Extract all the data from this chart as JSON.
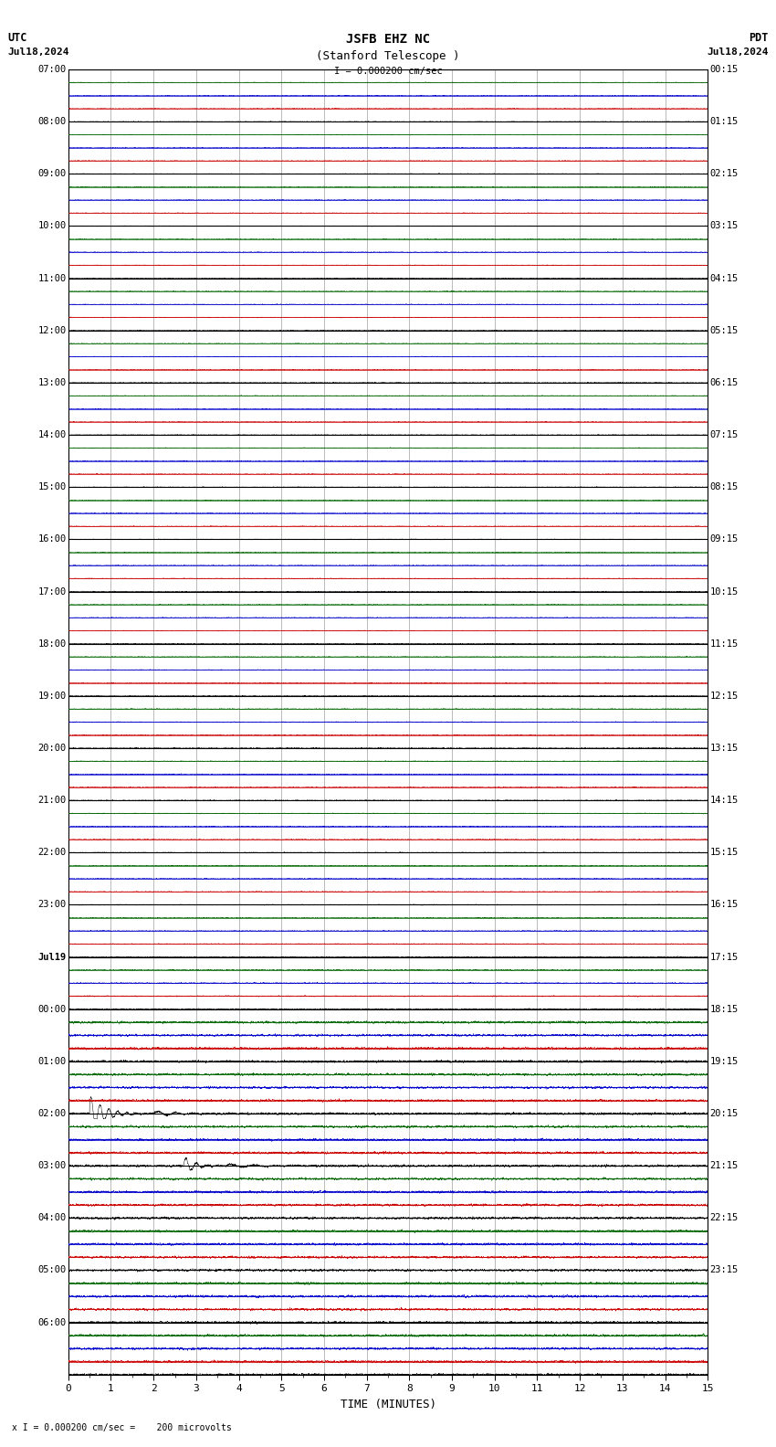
{
  "title_line1": "JSFB EHZ NC",
  "title_line2": "(Stanford Telescope )",
  "scale_text": "I = 0.000200 cm/sec",
  "footer_text": "x I = 0.000200 cm/sec =    200 microvolts",
  "utc_label": "UTC",
  "pdt_label": "PDT",
  "date_left": "Jul18,2024",
  "date_right": "Jul18,2024",
  "xlabel": "TIME (MINUTES)",
  "bg_color": "#ffffff",
  "grid_color_black": "#000000",
  "grid_color_red": "#cc0000",
  "grid_color_blue": "#0000cc",
  "grid_color_green": "#006600",
  "grid_color_vert": "#999999",
  "trace_color": "#000000",
  "left_labels": [
    "07:00",
    "08:00",
    "09:00",
    "10:00",
    "11:00",
    "12:00",
    "13:00",
    "14:00",
    "15:00",
    "16:00",
    "17:00",
    "18:00",
    "19:00",
    "20:00",
    "21:00",
    "22:00",
    "23:00",
    "Jul19",
    "00:00",
    "01:00",
    "02:00",
    "03:00",
    "04:00",
    "05:00",
    "06:00"
  ],
  "right_labels": [
    "00:15",
    "01:15",
    "02:15",
    "03:15",
    "04:15",
    "05:15",
    "06:15",
    "07:15",
    "08:15",
    "09:15",
    "10:15",
    "11:15",
    "12:15",
    "13:15",
    "14:15",
    "15:15",
    "16:15",
    "17:15",
    "18:15",
    "19:15",
    "20:15",
    "21:15",
    "22:15",
    "23:15",
    ""
  ],
  "n_rows": 25,
  "x_max": 15,
  "signal_row_quake1": 19,
  "signal_row_quake2": 20,
  "signal_amplitude_1": 0.35,
  "signal_amplitude_2": 0.18,
  "signal_time_1": 0.5,
  "signal_time_2": 2.7
}
